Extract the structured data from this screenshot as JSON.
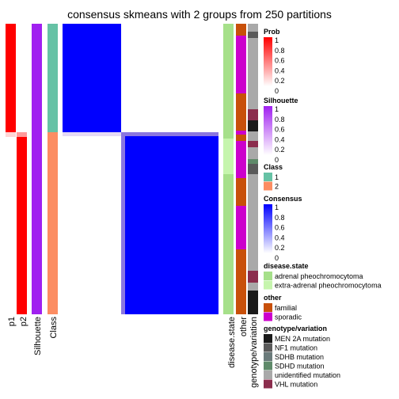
{
  "title": "consensus skmeans with 2 groups from 250 partitions",
  "colors": {
    "prob_high": "#ff0000",
    "silhouette_high": "#a020f0",
    "class_1": "#66c2a5",
    "class_2": "#fc8d62",
    "consensus_high": "#0000ff",
    "adrenal": "#a6e08a",
    "extra_adrenal": "#c6f5ad",
    "familial": "#c8500a",
    "sporadic": "#cc00cc",
    "men2a": "#1a1a1a",
    "nf1": "#5a5a5a",
    "sdhb": "#6b7b7b",
    "sdhd": "#5f8a6a",
    "unidentified": "#a9a9a9",
    "vhl": "#8b2d4d"
  },
  "chart_data": {
    "type": "heatmap",
    "title": "consensus skmeans with 2 groups from 250 partitions",
    "columns": [
      "p1",
      "p2",
      "Silhouette",
      "Class",
      "disease.state",
      "other",
      "genotype/variation"
    ],
    "groups": [
      {
        "class": "1",
        "samples": 70
      },
      {
        "class": "2",
        "samples": 110
      }
    ],
    "consensus_blocks": [
      {
        "rows": "class 1",
        "cols": "class 1",
        "value": 1
      },
      {
        "rows": "class 2",
        "cols": "class 2",
        "value": 1
      },
      {
        "rows": "class 1",
        "cols": "class 2",
        "value": 0
      }
    ],
    "legends": [
      {
        "title": "Prob",
        "ticks": [
          "1",
          "0.8",
          "0.6",
          "0.4",
          "0.2",
          "0"
        ]
      },
      {
        "title": "Silhouette",
        "ticks": [
          "1",
          "0.8",
          "0.6",
          "0.4",
          "0.2",
          "0"
        ]
      },
      {
        "title": "Class",
        "entries": [
          "1",
          "2"
        ]
      },
      {
        "title": "Consensus",
        "ticks": [
          "1",
          "0.8",
          "0.6",
          "0.4",
          "0.2",
          "0"
        ]
      },
      {
        "title": "disease.state",
        "entries": [
          "adrenal pheochromocytoma",
          "extra-adrenal pheochromocytoma"
        ]
      },
      {
        "title": "other",
        "entries": [
          "familial",
          "sporadic"
        ]
      },
      {
        "title": "genotype/variation",
        "entries": [
          "MEN 2A mutation",
          "NF1 mutation",
          "SDHB mutation",
          "SDHD mutation",
          "unidentified mutation",
          "VHL mutation"
        ]
      }
    ]
  }
}
